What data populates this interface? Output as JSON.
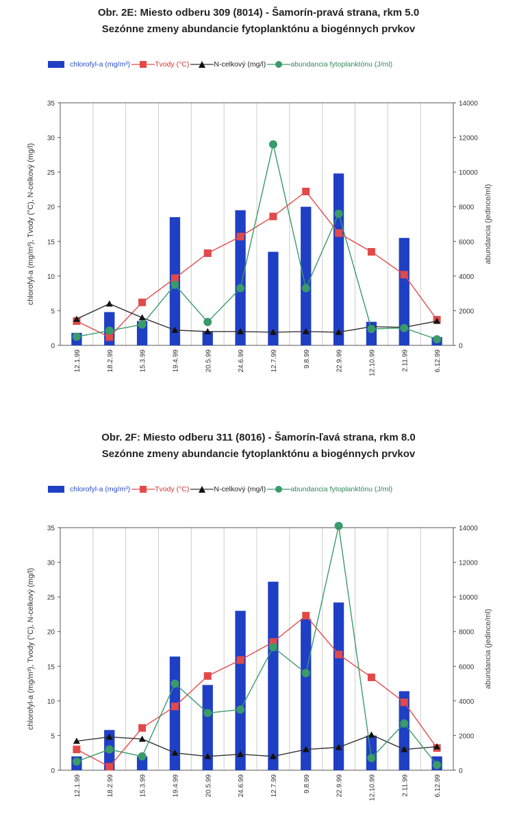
{
  "chart_data": [
    {
      "type": "bar",
      "title": "Obr. 2E: Miesto odberu 309 (8014) - Šamorín-pravá strana, rkm 5.0",
      "subtitle": "Sezónne zmeny abundancie fytoplanktónu a biogénnych prvkov",
      "ylabel": "chlorofyl-a (mg/m³),   Tvody (°C),   N-celkový (mg/l)",
      "y2label": "abundancia (jedince/ml)",
      "ylim": [
        0,
        35
      ],
      "y2lim": [
        0,
        14000
      ],
      "yticks": [
        "0",
        "5",
        "10",
        "15",
        "20",
        "25",
        "30",
        "35"
      ],
      "y2ticks": [
        "0",
        "2000",
        "4000",
        "6000",
        "8000",
        "10000",
        "12000",
        "14000"
      ],
      "categories": [
        "12.1.99",
        "18.2.99",
        "15.3.99",
        "19.4.99",
        "20.5.99",
        "24.6.99",
        "12.7.99",
        "9.8.99",
        "22.9.99",
        "12.10.99",
        "2.11.99",
        "6.12.99"
      ],
      "legend": {
        "chlorofyl": "chlorofyl-a (mg/m³)",
        "tvody": "Tvody (°C)",
        "ncelk": "N-celkový (mg/l)",
        "abundancia": "abundancia fytoplanktónu (J/ml)"
      },
      "series": [
        {
          "name": "chlorofyl-a (mg/m³)",
          "kind": "bar",
          "axis": "left",
          "color": "#1f3fc4",
          "values": [
            1.8,
            4.8,
            3.5,
            18.5,
            2.0,
            19.5,
            13.5,
            20.0,
            24.8,
            3.4,
            15.5,
            1.2
          ]
        },
        {
          "name": "Tvody (°C)",
          "kind": "line",
          "axis": "left",
          "color": "#e24a4a",
          "marker": "square",
          "values": [
            3.5,
            1.2,
            6.2,
            9.7,
            13.3,
            15.7,
            18.6,
            22.2,
            16.2,
            13.5,
            10.2,
            3.7
          ]
        },
        {
          "name": "N-celkový (mg/l)",
          "kind": "line",
          "axis": "left",
          "color": "#333333",
          "marker": "triangle",
          "values": [
            3.8,
            6.0,
            4.0,
            2.2,
            2.0,
            2.0,
            1.9,
            2.0,
            1.9,
            2.7,
            2.6,
            3.5
          ]
        },
        {
          "name": "abundancia fytoplanktónu (J/ml)",
          "kind": "line",
          "axis": "right",
          "color": "#3a9a6a",
          "marker": "circle",
          "values": [
            500,
            850,
            1200,
            3500,
            1350,
            3300,
            11600,
            3300,
            7600,
            950,
            1000,
            350
          ]
        }
      ]
    },
    {
      "type": "bar",
      "title": "Obr. 2F: Miesto odberu 311 (8016) - Šamorín-ľavá strana, rkm 8.0",
      "subtitle": "Sezónne zmeny abundancie fytoplanktónu a biogénnych prvkov",
      "ylabel": "chlorofyl-a (mg/m³),   Tvody (°C),   N-celkový (mg/l)",
      "y2label": "abundancia (jedince/ml)",
      "ylim": [
        0,
        35
      ],
      "y2lim": [
        0,
        14000
      ],
      "yticks": [
        "0",
        "5",
        "10",
        "15",
        "20",
        "25",
        "30",
        "35"
      ],
      "y2ticks": [
        "0",
        "2000",
        "4000",
        "6000",
        "8000",
        "10000",
        "12000",
        "14000"
      ],
      "categories": [
        "12.1.99",
        "18.2.99",
        "15.3.99",
        "19.4.99",
        "20.5.99",
        "24.6.99",
        "12.7.99",
        "9.8.99",
        "22.9.99",
        "12.10.99",
        "2.11.99",
        "6.12.99"
      ],
      "legend": {
        "chlorofyl": "chlorofyl-a (mg/m³)",
        "tvody": "Tvody (°C)",
        "ncelk": "N-celkový (mg/l)",
        "abundancia": "abundancia fytoplanktónu (J/ml)"
      },
      "series": [
        {
          "name": "chlorofyl-a (mg/m³)",
          "kind": "bar",
          "axis": "left",
          "color": "#1f3fc4",
          "values": [
            2.0,
            5.8,
            2.0,
            16.4,
            12.3,
            23.0,
            27.2,
            21.8,
            24.2,
            5.0,
            11.4,
            2.0
          ]
        },
        {
          "name": "Tvody (°C)",
          "kind": "line",
          "axis": "left",
          "color": "#e24a4a",
          "marker": "square",
          "values": [
            3.0,
            0.5,
            6.1,
            9.2,
            13.6,
            15.9,
            18.5,
            22.3,
            16.7,
            13.4,
            9.8,
            3.2
          ]
        },
        {
          "name": "N-celkový (mg/l)",
          "kind": "line",
          "axis": "left",
          "color": "#333333",
          "marker": "triangle",
          "values": [
            4.2,
            4.8,
            4.5,
            2.5,
            2.0,
            2.3,
            2.0,
            3.0,
            3.3,
            5.1,
            3.0,
            3.4
          ]
        },
        {
          "name": "abundancia fytoplanktónu (J/ml)",
          "kind": "line",
          "axis": "right",
          "color": "#3a9a6a",
          "marker": "circle",
          "values": [
            500,
            1200,
            800,
            5000,
            3300,
            3500,
            7100,
            5600,
            14100,
            700,
            2700,
            300
          ]
        }
      ]
    }
  ]
}
